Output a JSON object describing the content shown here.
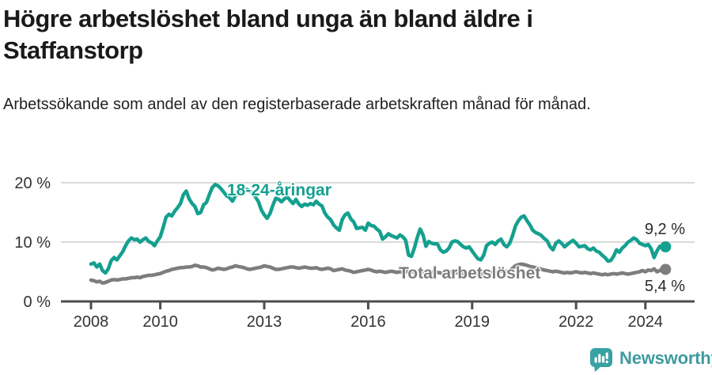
{
  "chart_data": {
    "type": "line",
    "title": "Högre arbetslöshet bland unga än bland äldre i Staffanstorp",
    "subtitle": "Arbetssökande som andel av den registerbaserade arbetskraften månad för månad.",
    "x_start": "2008-01",
    "x_end": "2024-08",
    "x_step_months": 1,
    "x_ticks": [
      {
        "year": 2008,
        "label": "2008"
      },
      {
        "year": 2010,
        "label": "2010"
      },
      {
        "year": 2013,
        "label": "2013"
      },
      {
        "year": 2016,
        "label": "2016"
      },
      {
        "year": 2019,
        "label": "2019"
      },
      {
        "year": 2022,
        "label": "2022"
      },
      {
        "year": 2024,
        "label": "2024"
      }
    ],
    "y_ticks": [
      {
        "value": 0,
        "label": "0 %"
      },
      {
        "value": 10,
        "label": "10 %"
      },
      {
        "value": 20,
        "label": "20 %"
      }
    ],
    "ylim": [
      0,
      21
    ],
    "grid": "horizontal",
    "legend": "inline-labels",
    "series": [
      {
        "name": "18-24-åringar",
        "color": "#14A08F",
        "end_label": "9,2 %",
        "end_value": 9.2,
        "values": [
          6.3,
          6.5,
          5.8,
          6.3,
          5.2,
          4.8,
          5.5,
          6.9,
          7.4,
          7.0,
          7.7,
          8.4,
          9.4,
          10.2,
          10.7,
          10.4,
          10.5,
          10.0,
          10.4,
          10.7,
          10.1,
          9.9,
          9.4,
          10.2,
          10.9,
          12.5,
          14.2,
          14.7,
          14.4,
          15.2,
          15.8,
          16.5,
          18.0,
          18.6,
          17.3,
          16.5,
          16.0,
          14.8,
          15.0,
          16.3,
          16.7,
          18.0,
          19.2,
          19.7,
          19.5,
          19.0,
          18.4,
          17.8,
          17.5,
          16.9,
          17.8,
          18.4,
          18.2,
          18.6,
          18.9,
          18.6,
          18.3,
          17.6,
          16.8,
          15.4,
          14.6,
          14.0,
          14.8,
          16.2,
          17.4,
          17.2,
          16.8,
          17.3,
          17.6,
          17.0,
          16.5,
          17.2,
          16.4,
          16.0,
          16.4,
          16.2,
          16.5,
          16.3,
          16.9,
          16.4,
          16.1,
          14.9,
          14.2,
          13.8,
          12.9,
          12.4,
          12.0,
          13.8,
          14.6,
          14.9,
          13.9,
          13.4,
          12.3,
          12.4,
          12.5,
          12.0,
          13.2,
          12.8,
          12.7,
          12.2,
          11.8,
          10.5,
          10.9,
          11.4,
          11.1,
          10.9,
          10.7,
          11.2,
          10.9,
          10.3,
          7.8,
          7.6,
          9.0,
          10.8,
          12.2,
          11.2,
          9.3,
          10.1,
          9.8,
          9.7,
          9.7,
          8.7,
          8.3,
          8.5,
          9.0,
          10.0,
          10.2,
          10.1,
          9.6,
          9.2,
          9.0,
          9.2,
          8.5,
          7.8,
          7.2,
          7.0,
          7.8,
          9.4,
          9.8,
          10.0,
          9.6,
          10.2,
          10.5,
          9.6,
          9.2,
          9.8,
          11.1,
          12.7,
          13.6,
          14.2,
          14.4,
          13.6,
          12.9,
          12.0,
          11.6,
          11.4,
          11.1,
          10.6,
          10.2,
          9.2,
          8.7,
          9.8,
          10.2,
          9.8,
          9.2,
          9.6,
          10.0,
          10.3,
          9.8,
          9.2,
          9.3,
          9.4,
          8.9,
          8.7,
          9.0,
          8.5,
          8.3,
          7.8,
          7.4,
          6.8,
          6.9,
          7.6,
          8.7,
          8.3,
          9.0,
          9.4,
          10.0,
          10.3,
          10.7,
          10.4,
          9.8,
          9.6,
          9.4,
          9.6,
          8.9,
          7.4,
          8.5,
          9.3,
          9.0,
          9.2
        ]
      },
      {
        "name": "Total arbetslöshet",
        "color": "#7D7D7D",
        "end_label": "5,4 %",
        "end_value": 5.4,
        "values": [
          3.6,
          3.5,
          3.3,
          3.4,
          3.1,
          3.2,
          3.4,
          3.6,
          3.7,
          3.6,
          3.7,
          3.8,
          3.8,
          3.9,
          4.0,
          4.0,
          4.1,
          4.0,
          4.2,
          4.3,
          4.4,
          4.4,
          4.5,
          4.6,
          4.7,
          4.9,
          5.1,
          5.2,
          5.4,
          5.5,
          5.6,
          5.7,
          5.7,
          5.8,
          5.8,
          5.9,
          6.1,
          6.0,
          5.8,
          5.8,
          5.7,
          5.5,
          5.3,
          5.4,
          5.6,
          5.5,
          5.4,
          5.5,
          5.7,
          5.8,
          6.0,
          5.9,
          5.8,
          5.7,
          5.5,
          5.4,
          5.5,
          5.6,
          5.7,
          5.8,
          6.0,
          5.9,
          5.8,
          5.6,
          5.4,
          5.4,
          5.5,
          5.6,
          5.7,
          5.8,
          5.8,
          5.7,
          5.6,
          5.7,
          5.8,
          5.7,
          5.6,
          5.6,
          5.7,
          5.5,
          5.4,
          5.5,
          5.6,
          5.5,
          5.2,
          5.3,
          5.4,
          5.5,
          5.3,
          5.2,
          5.1,
          4.9,
          5.0,
          5.1,
          5.2,
          5.3,
          5.4,
          5.3,
          5.1,
          5.0,
          5.1,
          5.0,
          4.9,
          5.0,
          5.1,
          5.0,
          4.9,
          5.0,
          4.9,
          5.0,
          5.1,
          5.0,
          4.9,
          4.8,
          4.9,
          5.0,
          4.9,
          4.8,
          4.9,
          5.0,
          4.9,
          4.8,
          4.7,
          4.8,
          4.9,
          5.0,
          4.9,
          4.8,
          4.7,
          4.6,
          4.7,
          4.8,
          4.7,
          4.6,
          4.5,
          4.6,
          4.7,
          4.8,
          4.9,
          5.0,
          4.9,
          5.0,
          5.1,
          5.0,
          5.1,
          5.2,
          5.6,
          6.0,
          6.2,
          6.3,
          6.2,
          6.1,
          5.9,
          5.8,
          5.7,
          5.6,
          5.4,
          5.3,
          5.2,
          5.1,
          5.0,
          5.1,
          5.0,
          4.9,
          4.8,
          4.9,
          4.8,
          4.9,
          5.0,
          4.9,
          4.8,
          4.9,
          4.8,
          4.7,
          4.8,
          4.7,
          4.6,
          4.5,
          4.6,
          4.5,
          4.6,
          4.7,
          4.6,
          4.7,
          4.8,
          4.7,
          4.6,
          4.7,
          4.8,
          4.9,
          5.0,
          5.2,
          5.0,
          5.3,
          5.2,
          5.5,
          5.0,
          5.2,
          5.6,
          5.4
        ]
      }
    ],
    "style": {
      "grid_color": "#DADADA",
      "axis_color": "#4D4D4D",
      "tick_label_color": "#333333"
    }
  },
  "branding": {
    "wordmark": "Newsworthy",
    "icon": "newsworthy-bubble-barchart-icon",
    "color": "#3F9BA0"
  }
}
